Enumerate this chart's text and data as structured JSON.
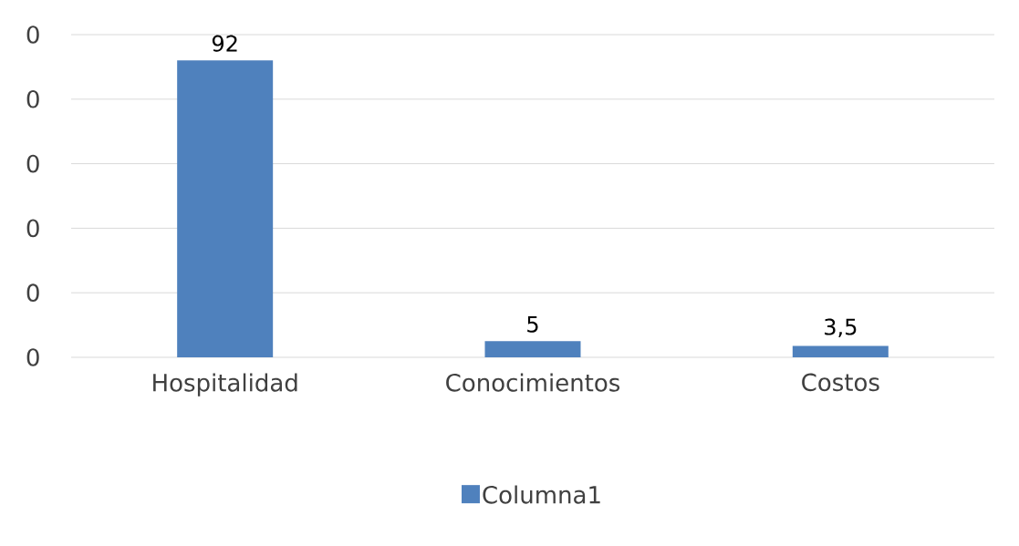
{
  "chart_data": {
    "type": "bar",
    "categories": [
      "Hospitalidad",
      "Conocimientos",
      "Costos"
    ],
    "series": [
      {
        "name": "Columna1",
        "color": "#4f81bd",
        "values": [
          92,
          5,
          3.5
        ],
        "value_labels": [
          "92",
          "5",
          "3,5"
        ]
      }
    ],
    "ylim": [
      0,
      100
    ],
    "yticks": [
      {
        "value": 0,
        "label": null
      },
      {
        "value": 20,
        "label": null
      },
      {
        "value": 40,
        "label": null
      },
      {
        "value": 60,
        "label": null
      },
      {
        "value": 80,
        "label": null
      },
      {
        "value": 100,
        "label": null
      }
    ],
    "annotations": [
      "0",
      "0",
      "0",
      "0",
      "0",
      "0"
    ],
    "grid": "y",
    "legend": "bottom"
  }
}
